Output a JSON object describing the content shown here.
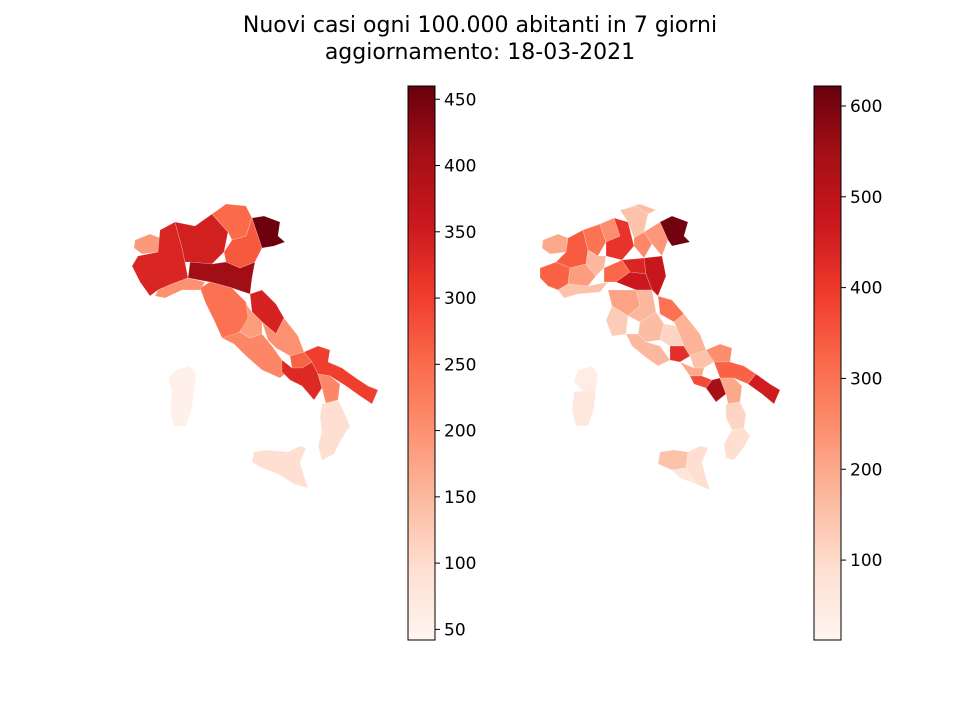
{
  "title": {
    "line1": "Nuovi casi ogni 100.000 abitanti in 7 giorni",
    "line2": "aggiornamento: 18-03-2021"
  },
  "colormap": {
    "name": "Reds",
    "stops": [
      "#fff5f0",
      "#fee0d2",
      "#fcbba1",
      "#fc9272",
      "#fb6a4a",
      "#ef3b2c",
      "#cb181d",
      "#a50f15",
      "#67000d"
    ]
  },
  "maps": [
    {
      "level": "regions",
      "colorbar": {
        "min": 42,
        "max": 460,
        "ticks": [
          50,
          100,
          150,
          200,
          250,
          300,
          350,
          400,
          450
        ]
      },
      "areas": [
        {
          "name": "Valle d'Aosta",
          "value": 190
        },
        {
          "name": "Piemonte",
          "value": 335
        },
        {
          "name": "Lombardia",
          "value": 345
        },
        {
          "name": "Trentino-Alto Adige",
          "value": 250
        },
        {
          "name": "Veneto",
          "value": 270
        },
        {
          "name": "Friuli Venezia Giulia",
          "value": 455
        },
        {
          "name": "Liguria",
          "value": 200
        },
        {
          "name": "Emilia-Romagna",
          "value": 410
        },
        {
          "name": "Toscana",
          "value": 240
        },
        {
          "name": "Marche",
          "value": 340
        },
        {
          "name": "Umbria",
          "value": 185
        },
        {
          "name": "Lazio",
          "value": 215
        },
        {
          "name": "Abruzzo",
          "value": 200
        },
        {
          "name": "Molise",
          "value": 260
        },
        {
          "name": "Campania",
          "value": 330
        },
        {
          "name": "Puglia",
          "value": 300
        },
        {
          "name": "Basilicata",
          "value": 215
        },
        {
          "name": "Calabria",
          "value": 95
        },
        {
          "name": "Sicilia",
          "value": 95
        },
        {
          "name": "Sardegna",
          "value": 55
        }
      ]
    },
    {
      "level": "provinces",
      "colorbar": {
        "min": 12,
        "max": 622,
        "ticks": [
          100,
          200,
          300,
          400,
          500,
          600
        ]
      },
      "areas": [
        {
          "name": "Trieste",
          "value": 610
        },
        {
          "name": "Torino",
          "value": 340
        },
        {
          "name": "Cuneo",
          "value": 330
        },
        {
          "name": "Milano",
          "value": 300
        },
        {
          "name": "Brescia",
          "value": 410
        },
        {
          "name": "Bologna",
          "value": 470
        },
        {
          "name": "Rimini",
          "value": 480
        },
        {
          "name": "Ancona",
          "value": 300
        },
        {
          "name": "Napoli",
          "value": 370
        },
        {
          "name": "Bari",
          "value": 330
        },
        {
          "name": "Roma",
          "value": 170
        },
        {
          "name": "Firenze",
          "value": 210
        },
        {
          "name": "Perugia",
          "value": 160
        },
        {
          "name": "Palermo",
          "value": 150
        },
        {
          "name": "Cagliari",
          "value": 60
        },
        {
          "name": "Reggio Calabria",
          "value": 90
        }
      ]
    }
  ]
}
